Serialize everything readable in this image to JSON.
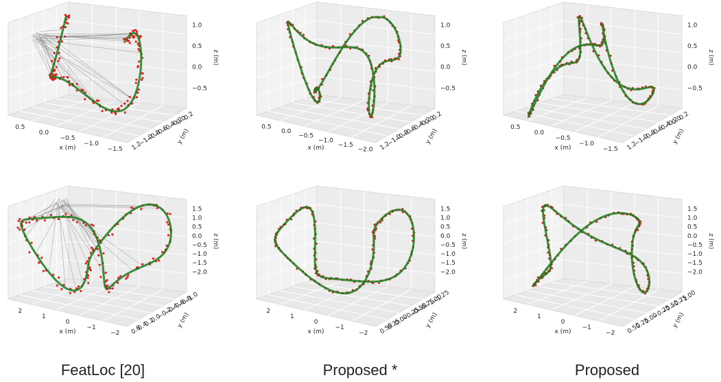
{
  "panels": [
    {
      "xlabel": "x (m)",
      "ylabel": "y (m)",
      "zlabel": "z (m)",
      "xticks": [
        "0.5",
        "0.0",
        "−0.5",
        "−1.0",
        "−1.5"
      ],
      "yticks": [
        "1.2",
        "−1.0",
        "−0.8",
        "−0.6",
        "−0.4",
        "−0.2",
        "0.0",
        "0.2"
      ],
      "zticks": [
        "−0.5",
        "0.0",
        "0.5",
        "1.0"
      ]
    },
    {
      "xlabel": "x (m)",
      "ylabel": "y (m)",
      "zlabel": "z (m)",
      "xticks": [
        "0.5",
        "0.0",
        "−0.5",
        "−1.0",
        "−1.5",
        "−2.0"
      ],
      "yticks": [
        "1.2",
        "−1.0",
        "−0.8",
        "−0.6",
        "−0.4",
        "−0.2",
        "0.0",
        "0.2"
      ],
      "zticks": [
        "−0.5",
        "0.0",
        "0.5",
        "1.0"
      ]
    },
    {
      "xlabel": "x (m)",
      "ylabel": "y (m)",
      "zlabel": "z (m)",
      "xticks": [
        "0.5",
        "0.0",
        "−0.5",
        "−1.0",
        "−1.5"
      ],
      "yticks": [
        "1.2",
        "−1.0",
        "−0.8",
        "−0.6",
        "−0.4",
        "−0.2",
        "0.0",
        "0.2"
      ],
      "zticks": [
        "−0.5",
        "0.0",
        "0.5",
        "1.0"
      ]
    },
    {
      "xlabel": "x (m)",
      "ylabel": "y (m)",
      "zlabel": "z (m)",
      "xticks": [
        "2",
        "1",
        "0",
        "−1",
        "−2"
      ],
      "yticks": [
        "0.6",
        "0.4",
        "0.2",
        "0.0",
        "−0.2",
        "−0.4",
        "−0.6",
        "−0.8",
        "−1.0"
      ],
      "zticks": [
        "−2.0",
        "−1.5",
        "−1.0",
        "−0.5",
        "0.0",
        "0.5",
        "1.0",
        "1.5"
      ]
    },
    {
      "xlabel": "x (m)",
      "ylabel": "y (m)",
      "zlabel": "z (m)",
      "xticks": [
        "2",
        "1",
        "0",
        "−1",
        "−2"
      ],
      "yticks": [
        "0.50",
        "0.25",
        "0.00",
        "−0.25",
        "−0.50",
        "−0.75",
        "−1.00",
        "−1.25"
      ],
      "zticks": [
        "−2.0",
        "−1.5",
        "−1.0",
        "−0.5",
        "0.0",
        "0.5",
        "1.0",
        "1.5"
      ]
    },
    {
      "xlabel": "x (m)",
      "ylabel": "y (m)",
      "zlabel": "z (m)",
      "xticks": [
        "2",
        "1",
        "0",
        "−1",
        "−2"
      ],
      "yticks": [
        "0.50",
        "0.25",
        "0.00",
        "−0.25",
        "−0.50",
        "−0.75",
        "−1.00"
      ],
      "zticks": [
        "−2.0",
        "−1.5",
        "−1.0",
        "−0.5",
        "0.0",
        "0.5",
        "1.0",
        "1.5"
      ]
    }
  ],
  "captions": [
    "FeatLoc [20]",
    "Proposed *",
    "Proposed"
  ]
}
